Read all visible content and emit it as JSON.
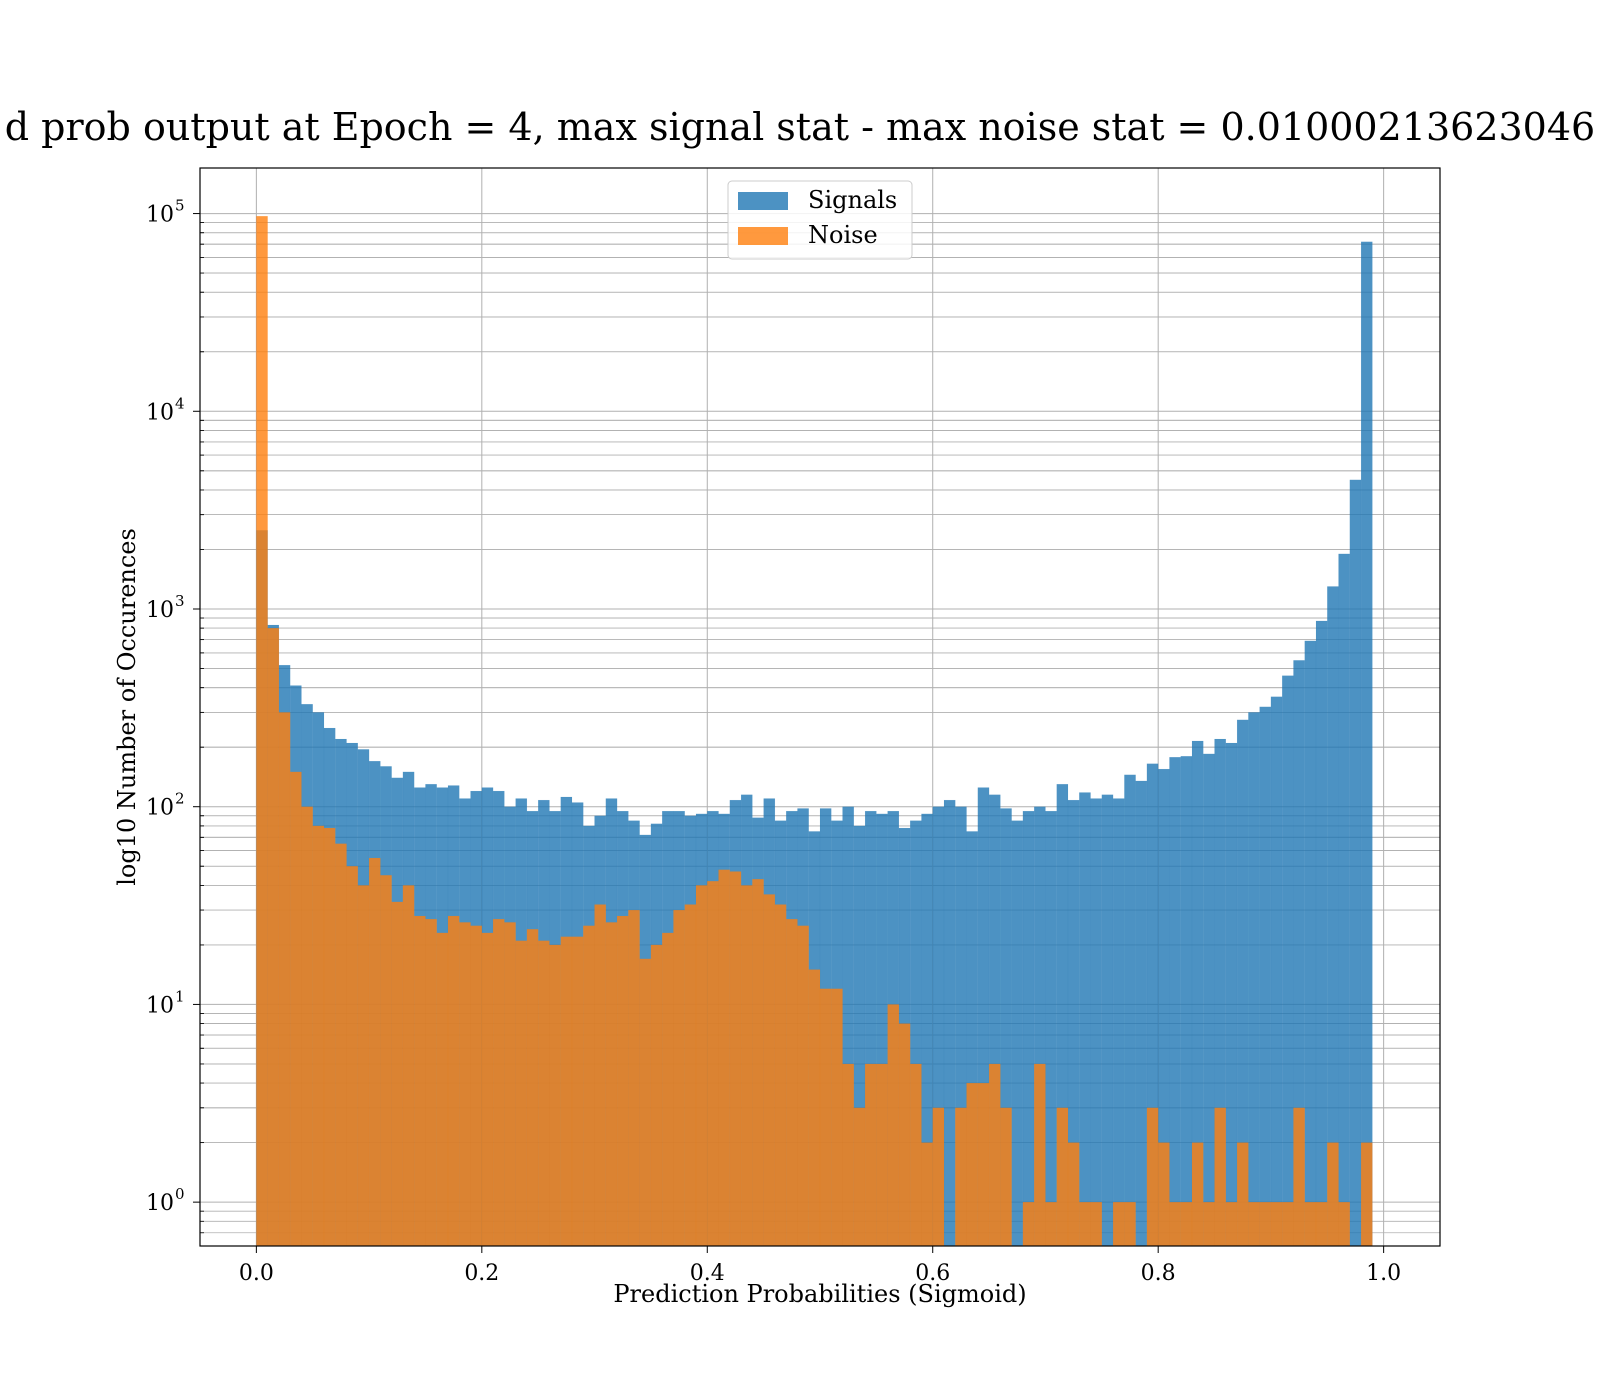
{
  "chart_data": {
    "type": "bar",
    "title": "d prob output at Epoch = 4, max signal stat - max noise stat = 0.01000213623046",
    "xlabel": "Prediction Probabilities (Sigmoid)",
    "ylabel": "log10 Number of Occurences",
    "xlim": [
      -0.05,
      1.05
    ],
    "ylim": [
      0.6,
      170000
    ],
    "yscale": "log",
    "grid": true,
    "legend": "upper-center",
    "bin_width": 0.01,
    "x_ticks": [
      {
        "value": 0.0,
        "label": "0.0"
      },
      {
        "value": 0.2,
        "label": "0.2"
      },
      {
        "value": 0.4,
        "label": "0.4"
      },
      {
        "value": 0.6,
        "label": "0.6"
      },
      {
        "value": 0.8,
        "label": "0.8"
      },
      {
        "value": 1.0,
        "label": "1.0"
      }
    ],
    "y_ticks": [
      {
        "value": 1,
        "base": "10",
        "exp": "0"
      },
      {
        "value": 10,
        "base": "10",
        "exp": "1"
      },
      {
        "value": 100,
        "base": "10",
        "exp": "2"
      },
      {
        "value": 1000,
        "base": "10",
        "exp": "3"
      },
      {
        "value": 10000,
        "base": "10",
        "exp": "4"
      },
      {
        "value": 100000,
        "base": "10",
        "exp": "5"
      }
    ],
    "series": [
      {
        "name": "Signals",
        "color": "#1f77b4",
        "values": [
          2500,
          830,
          520,
          410,
          330,
          300,
          250,
          220,
          210,
          195,
          170,
          160,
          140,
          150,
          125,
          130,
          125,
          128,
          110,
          120,
          125,
          120,
          100,
          110,
          95,
          108,
          95,
          112,
          105,
          80,
          90,
          110,
          95,
          85,
          72,
          82,
          95,
          95,
          90,
          92,
          95,
          92,
          108,
          115,
          88,
          110,
          85,
          95,
          98,
          75,
          98,
          85,
          100,
          80,
          95,
          92,
          95,
          78,
          85,
          92,
          100,
          108,
          100,
          75,
          125,
          115,
          98,
          85,
          95,
          100,
          95,
          130,
          108,
          118,
          110,
          115,
          110,
          145,
          135,
          165,
          155,
          178,
          180,
          215,
          185,
          220,
          210,
          275,
          300,
          320,
          360,
          460,
          550,
          690,
          870,
          1300,
          1900,
          4500,
          72000,
          0
        ]
      },
      {
        "name": "Noise",
        "color": "#ff7f0e",
        "values": [
          97000,
          800,
          300,
          150,
          100,
          80,
          78,
          65,
          50,
          40,
          55,
          45,
          33,
          40,
          28,
          27,
          23,
          28,
          26,
          25,
          23,
          27,
          26,
          21,
          24,
          21,
          20,
          22,
          22,
          25,
          32,
          26,
          28,
          30,
          17,
          20,
          23,
          30,
          32,
          40,
          42,
          48,
          47,
          40,
          43,
          36,
          32,
          27,
          25,
          15,
          12,
          12,
          5,
          3,
          5,
          5,
          10,
          8,
          5,
          2,
          3,
          0,
          3,
          4,
          4,
          5,
          3,
          0,
          1,
          5,
          1,
          3,
          2,
          1,
          1,
          0,
          1,
          1,
          0,
          3,
          2,
          1,
          1,
          2,
          1,
          3,
          1,
          2,
          1,
          1,
          1,
          1,
          3,
          1,
          1,
          2,
          1,
          0,
          2,
          0
        ]
      }
    ]
  }
}
